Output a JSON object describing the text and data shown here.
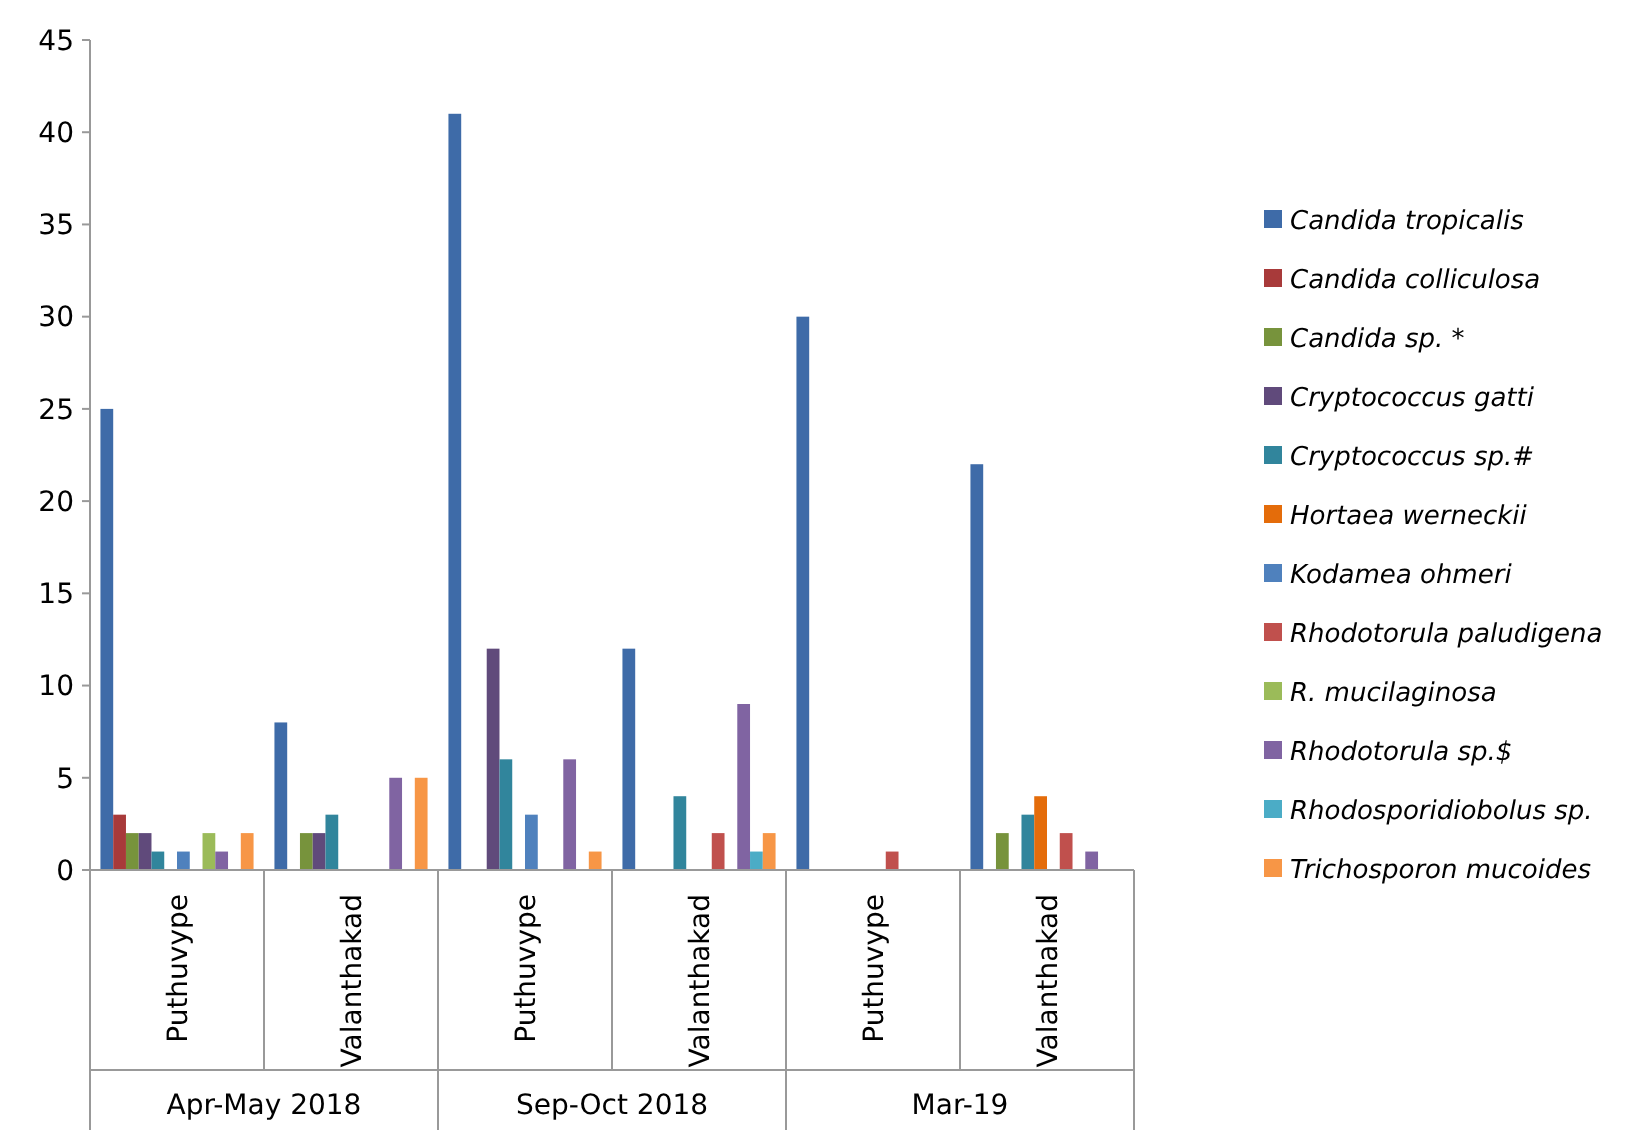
{
  "chart_data": {
    "type": "bar",
    "categories": [
      "Puthuvype",
      "Valanthakad",
      "Puthuvype",
      "Valanthakad",
      "Puthuvype",
      "Valanthakad"
    ],
    "annotations": [
      "Apr-May 2018",
      "Sep-Oct 2018",
      "Mar-19"
    ],
    "ylim": [
      0,
      45
    ],
    "yticks": [
      0,
      5,
      10,
      15,
      20,
      25,
      30,
      35,
      40,
      45
    ],
    "grid": false,
    "legend": "right",
    "series": [
      {
        "name": "Candida tropicalis",
        "color": "#3e6ba8",
        "values": [
          25,
          8,
          41,
          12,
          30,
          22
        ]
      },
      {
        "name": "Candida colliculosa",
        "color": "#a83a3a",
        "values": [
          3,
          0,
          0,
          0,
          0,
          0
        ]
      },
      {
        "name": "Candida sp. *",
        "color": "#77933c",
        "values": [
          2,
          2,
          0,
          0,
          0,
          2
        ]
      },
      {
        "name": "Cryptococcus gatti",
        "color": "#604a7b",
        "values": [
          2,
          2,
          12,
          0,
          0,
          0
        ]
      },
      {
        "name": "Cryptococcus sp.#",
        "color": "#31859c",
        "values": [
          1,
          3,
          6,
          4,
          0,
          3
        ]
      },
      {
        "name": "Hortaea werneckii",
        "color": "#e46c0a",
        "values": [
          0,
          0,
          0,
          0,
          0,
          4
        ]
      },
      {
        "name": "Kodamea ohmeri",
        "color": "#4f81bd",
        "values": [
          1,
          0,
          3,
          0,
          0,
          0
        ]
      },
      {
        "name": "Rhodotorula paludigena",
        "color": "#c0504d",
        "values": [
          0,
          0,
          0,
          2,
          1,
          2
        ]
      },
      {
        "name": "R. mucilaginosa",
        "color": "#9bbb59",
        "values": [
          2,
          0,
          0,
          0,
          0,
          0
        ]
      },
      {
        "name": "Rhodotorula sp.$",
        "color": "#8064a2",
        "values": [
          1,
          5,
          6,
          9,
          0,
          1
        ]
      },
      {
        "name": "Rhodosporidiobolus sp.",
        "color": "#4bacc6",
        "values": [
          0,
          0,
          0,
          1,
          0,
          0
        ]
      },
      {
        "name": "Trichosporon mucoides",
        "color": "#f79646",
        "values": [
          2,
          5,
          1,
          2,
          0,
          0
        ]
      }
    ]
  }
}
